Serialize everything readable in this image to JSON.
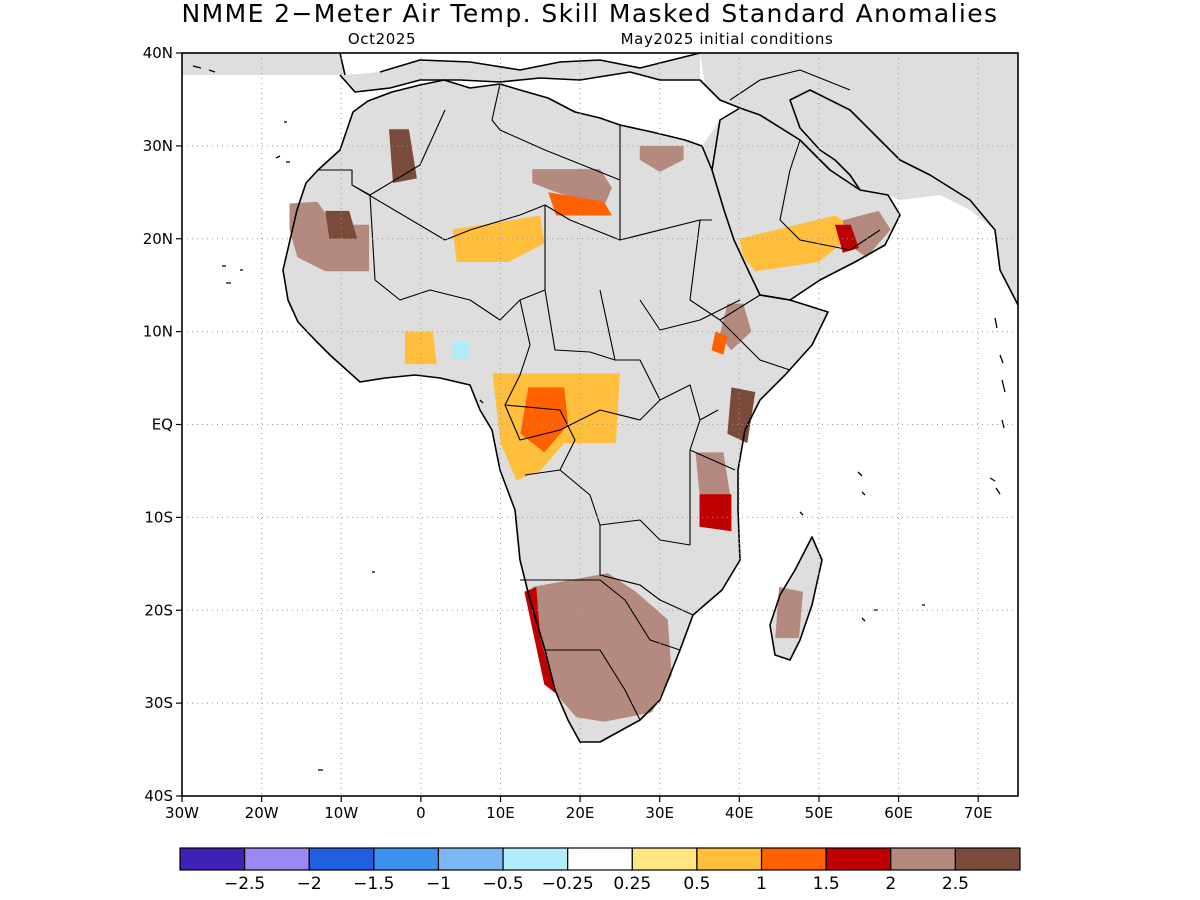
{
  "title": "NMME 2−Meter Air Temp. Skill Masked Standard Anomalies",
  "target_month": "Oct2025",
  "initial_conditions": "May2025 initial conditions",
  "map": {
    "lon_range": [
      -30,
      75
    ],
    "lat_range": [
      -40,
      40
    ],
    "lon_ticks": [
      {
        "lon": -30,
        "label": "30W"
      },
      {
        "lon": -20,
        "label": "20W"
      },
      {
        "lon": -10,
        "label": "10W"
      },
      {
        "lon": 0,
        "label": "0"
      },
      {
        "lon": 10,
        "label": "10E"
      },
      {
        "lon": 20,
        "label": "20E"
      },
      {
        "lon": 30,
        "label": "30E"
      },
      {
        "lon": 40,
        "label": "40E"
      },
      {
        "lon": 50,
        "label": "50E"
      },
      {
        "lon": 60,
        "label": "60E"
      },
      {
        "lon": 70,
        "label": "70E"
      }
    ],
    "lat_ticks": [
      {
        "lat": 40,
        "label": "40N"
      },
      {
        "lat": 30,
        "label": "30N"
      },
      {
        "lat": 20,
        "label": "20N"
      },
      {
        "lat": 10,
        "label": "10N"
      },
      {
        "lat": 0,
        "label": "EQ"
      },
      {
        "lat": -10,
        "label": "10S"
      },
      {
        "lat": -20,
        "label": "20S"
      },
      {
        "lat": -30,
        "label": "30S"
      },
      {
        "lat": -40,
        "label": "40S"
      }
    ],
    "masked_land_color": "#dedede",
    "anomaly_regions": [
      {
        "name": "west-sahara-mauritania",
        "level": 2,
        "poly": [
          [
            -16.5,
            23.8
          ],
          [
            -13,
            24
          ],
          [
            -11,
            21.5
          ],
          [
            -6.5,
            21.5
          ],
          [
            -6.5,
            16.5
          ],
          [
            -12,
            16.5
          ],
          [
            -15.5,
            18
          ],
          [
            -16.5,
            21
          ]
        ]
      },
      {
        "name": "mauritania-brown",
        "level": 2.5,
        "poly": [
          [
            -12,
            23
          ],
          [
            -9,
            23
          ],
          [
            -8,
            20
          ],
          [
            -11.5,
            20
          ]
        ]
      },
      {
        "name": "algeria-brown",
        "level": 2.5,
        "poly": [
          [
            -4,
            31.8
          ],
          [
            -1.5,
            31.8
          ],
          [
            -0.5,
            26.5
          ],
          [
            -3.5,
            26
          ]
        ]
      },
      {
        "name": "mali-niger-band",
        "level": 0.5,
        "poly": [
          [
            4,
            21
          ],
          [
            15,
            22.5
          ],
          [
            15.5,
            19.5
          ],
          [
            11,
            17.5
          ],
          [
            4.5,
            17.5
          ]
        ]
      },
      {
        "name": "libya-patch",
        "level": 2,
        "poly": [
          [
            14,
            27.5
          ],
          [
            22.5,
            27.5
          ],
          [
            24,
            25.5
          ],
          [
            23,
            23.5
          ],
          [
            17,
            25
          ],
          [
            14,
            26
          ]
        ]
      },
      {
        "name": "libya-patch-outer",
        "level": 1,
        "poly": [
          [
            16,
            25
          ],
          [
            23,
            24
          ],
          [
            24,
            22.5
          ],
          [
            17,
            22.5
          ]
        ]
      },
      {
        "name": "egypt-north",
        "level": 2,
        "poly": [
          [
            27.5,
            30
          ],
          [
            33,
            30
          ],
          [
            33,
            28.5
          ],
          [
            30,
            27.2
          ],
          [
            27.5,
            28.5
          ]
        ]
      },
      {
        "name": "arabia-band",
        "level": 0.5,
        "poly": [
          [
            40,
            20
          ],
          [
            52,
            22.5
          ],
          [
            55,
            21
          ],
          [
            50,
            17.5
          ],
          [
            42,
            16.5
          ],
          [
            40.5,
            18
          ]
        ]
      },
      {
        "name": "oman-red",
        "level": 2,
        "poly": [
          [
            53,
            22
          ],
          [
            57.5,
            23
          ],
          [
            59,
            21
          ],
          [
            56,
            18
          ],
          [
            53.5,
            19.5
          ]
        ]
      },
      {
        "name": "oman-orange",
        "level": 1.5,
        "poly": [
          [
            52,
            21.5
          ],
          [
            54,
            21.5
          ],
          [
            55,
            19
          ],
          [
            53,
            18.5
          ]
        ]
      },
      {
        "name": "ethiopia-red",
        "level": 2,
        "poly": [
          [
            38.5,
            13
          ],
          [
            40.5,
            13
          ],
          [
            41.5,
            10
          ],
          [
            39,
            8
          ],
          [
            37.5,
            9.5
          ]
        ]
      },
      {
        "name": "ethiopia-orange",
        "level": 1,
        "poly": [
          [
            37,
            10
          ],
          [
            38.5,
            9.5
          ],
          [
            38,
            7.5
          ],
          [
            36.5,
            8
          ]
        ]
      },
      {
        "name": "west-africa-coast",
        "level": 0.5,
        "poly": [
          [
            -2,
            10
          ],
          [
            1.5,
            10
          ],
          [
            2,
            6.5
          ],
          [
            -2,
            6.5
          ]
        ]
      },
      {
        "name": "west-africa-blue",
        "level": -0.5,
        "poly": [
          [
            4,
            9
          ],
          [
            6,
            9
          ],
          [
            6,
            7
          ],
          [
            4,
            7
          ]
        ]
      },
      {
        "name": "central-africa",
        "level": 0.5,
        "poly": [
          [
            9,
            5.5
          ],
          [
            25,
            5.5
          ],
          [
            24.5,
            -2
          ],
          [
            18,
            -2
          ],
          [
            15,
            -5
          ],
          [
            12,
            -6
          ],
          [
            10,
            -2
          ]
        ]
      },
      {
        "name": "central-africa-orange",
        "level": 1,
        "poly": [
          [
            13.5,
            4
          ],
          [
            18,
            4
          ],
          [
            18.5,
            0
          ],
          [
            15.5,
            -3
          ],
          [
            12.5,
            -1
          ]
        ]
      },
      {
        "name": "kenya-brown",
        "level": 2.5,
        "poly": [
          [
            39,
            4
          ],
          [
            42,
            3.5
          ],
          [
            41,
            -2
          ],
          [
            38.5,
            -1
          ]
        ]
      },
      {
        "name": "tanzania-red",
        "level": 2,
        "poly": [
          [
            34.5,
            -3
          ],
          [
            38,
            -3
          ],
          [
            39,
            -8.5
          ],
          [
            35,
            -7.5
          ]
        ]
      },
      {
        "name": "tanzania-orange",
        "level": 1.5,
        "poly": [
          [
            35,
            -7.5
          ],
          [
            39,
            -7.5
          ],
          [
            39,
            -11.5
          ],
          [
            35,
            -11
          ]
        ]
      },
      {
        "name": "southern-africa-red",
        "level": 2,
        "poly": [
          [
            14,
            -17.5
          ],
          [
            23.5,
            -16
          ],
          [
            27,
            -18
          ],
          [
            31,
            -21
          ],
          [
            31.5,
            -27
          ],
          [
            29,
            -31
          ],
          [
            23,
            -32
          ],
          [
            19.5,
            -31.5
          ],
          [
            17,
            -29
          ],
          [
            15,
            -23
          ]
        ]
      },
      {
        "name": "southern-africa-orange",
        "level": 1.5,
        "poly": [
          [
            13,
            -18
          ],
          [
            14.5,
            -17.5
          ],
          [
            15,
            -23
          ],
          [
            17,
            -29
          ],
          [
            15.5,
            -28
          ],
          [
            14,
            -22
          ]
        ]
      },
      {
        "name": "madagascar-red",
        "level": 2,
        "poly": [
          [
            45,
            -17.5
          ],
          [
            48,
            -18
          ],
          [
            47.5,
            -23
          ],
          [
            44.5,
            -23
          ]
        ]
      }
    ]
  },
  "colorbar": {
    "colors": [
      "#3f21b6",
      "#9c88f2",
      "#2060e0",
      "#3d92f0",
      "#7cb8f8",
      "#b0ecfa",
      "#ffffff",
      "#ffe680",
      "#ffbf3c",
      "#ff6000",
      "#c00000",
      "#b48a7e",
      "#7a4a3a"
    ],
    "labels": [
      "−2.5",
      "−2",
      "−1.5",
      "−1",
      "−0.5",
      "−0.25",
      "0.25",
      "0.5",
      "1",
      "1.5",
      "2",
      "2.5"
    ]
  }
}
